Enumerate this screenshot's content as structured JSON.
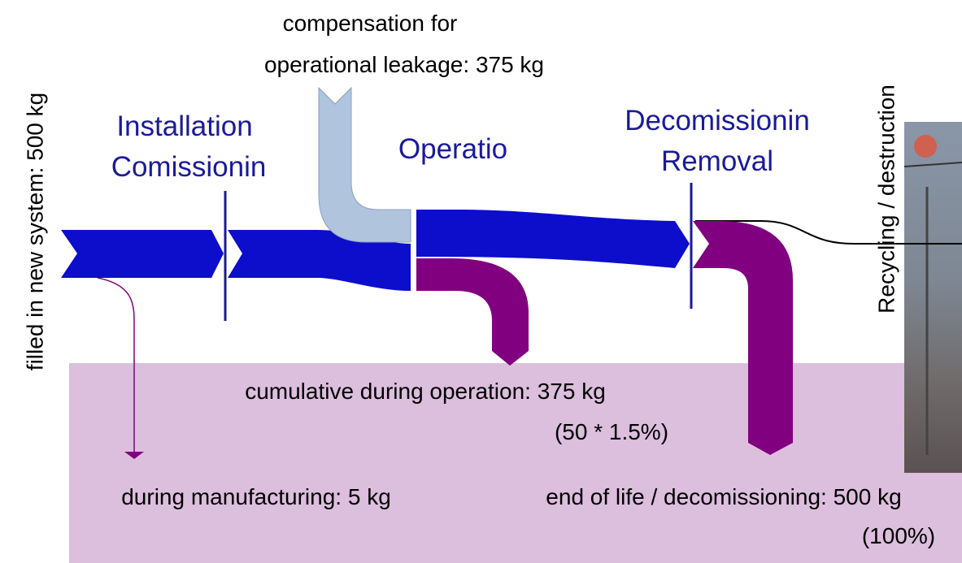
{
  "left_label": "filled in new system: 500 kg",
  "top_input": {
    "line1": "compensation for",
    "line2": "operational leakage: 375 kg"
  },
  "stages": [
    {
      "line1": "Installation",
      "line2": "Comissionin"
    },
    {
      "line1": "Operatio"
    },
    {
      "line1": "Decomissionin",
      "line2": "Removal"
    }
  ],
  "right_label": "Recycling / destruction",
  "emissions": {
    "operation": {
      "line1": "cumulative during operation: 375 kg",
      "line2": "(50 * 1.5%)"
    },
    "manufacturing": "during manufacturing: 5 kg",
    "end_of_life": {
      "line1": "end of life / decomissioning: 500 kg",
      "line2": "(100%)"
    }
  }
}
